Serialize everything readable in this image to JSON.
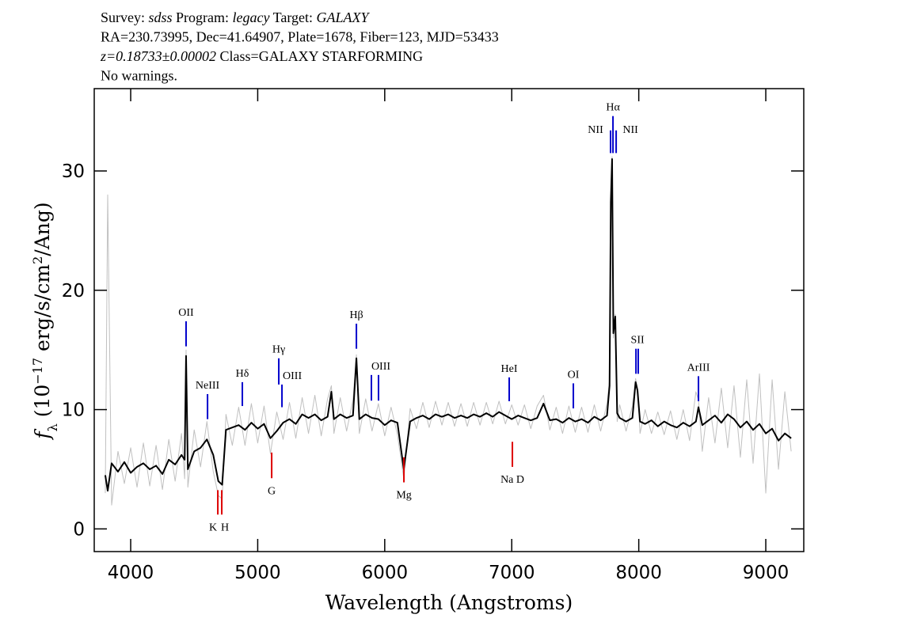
{
  "chart_data": {
    "type": "line",
    "header": [
      [
        {
          "text": "Survey: "
        },
        {
          "text": "sdss",
          "italic": true
        },
        {
          "text": " Program: "
        },
        {
          "text": "legacy",
          "italic": true
        },
        {
          "text": " Target: "
        },
        {
          "text": "GALAXY",
          "italic": true
        }
      ],
      [
        {
          "text": "RA=230.73995, Dec=41.64907, Plate=1678, Fiber=123, MJD=53433"
        }
      ],
      [
        {
          "text": "z=0.18733±0.00002",
          "italic": true
        },
        {
          "text": " Class=GALAXY STARFORMING"
        }
      ],
      [
        {
          "text": "No warnings."
        }
      ]
    ],
    "x_label": "Wavelength (Angstroms)",
    "y_label": [
      {
        "text": "f",
        "italic": true
      },
      {
        "text": "λ",
        "sub": true
      },
      {
        "text": " (10"
      },
      {
        "text": "−17",
        "sup": true
      },
      {
        "text": " erg/s/cm"
      },
      {
        "text": "2",
        "sup": true
      },
      {
        "text": "/Ang)"
      }
    ],
    "xlim": [
      3713,
      9299
    ],
    "ylim": [
      -1.9,
      36.9
    ],
    "xticks": [
      4000,
      5000,
      6000,
      7000,
      8000,
      9000
    ],
    "yticks": [
      0,
      10,
      20,
      30
    ],
    "x": [
      3800,
      3819,
      3850,
      3900,
      3950,
      4000,
      4050,
      4100,
      4150,
      4200,
      4250,
      4300,
      4350,
      4400,
      4425,
      4436,
      4450,
      4500,
      4550,
      4600,
      4650,
      4690,
      4720,
      4750,
      4800,
      4850,
      4900,
      4950,
      5000,
      5050,
      5100,
      5150,
      5200,
      5250,
      5300,
      5350,
      5400,
      5450,
      5500,
      5550,
      5580,
      5600,
      5650,
      5700,
      5750,
      5777,
      5800,
      5850,
      5900,
      5950,
      6000,
      6050,
      6100,
      6150,
      6200,
      6250,
      6300,
      6350,
      6400,
      6450,
      6500,
      6550,
      6600,
      6650,
      6700,
      6750,
      6800,
      6850,
      6900,
      6950,
      7000,
      7050,
      7100,
      7150,
      7200,
      7250,
      7300,
      7350,
      7400,
      7450,
      7500,
      7550,
      7600,
      7650,
      7700,
      7750,
      7770,
      7780,
      7790,
      7800,
      7815,
      7830,
      7850,
      7900,
      7950,
      7975,
      7990,
      8010,
      8050,
      8100,
      8150,
      8200,
      8250,
      8300,
      8350,
      8400,
      8450,
      8470,
      8500,
      8550,
      8600,
      8650,
      8700,
      8750,
      8800,
      8850,
      8900,
      8950,
      9000,
      9050,
      9100,
      9150,
      9200
    ],
    "series": [
      {
        "color": "#c0c0c0",
        "width": 1,
        "values": [
          3.0,
          28.0,
          2.0,
          6.5,
          3.8,
          6.8,
          3.5,
          7.2,
          3.6,
          7.0,
          3.3,
          7.5,
          4.0,
          8.0,
          4.2,
          15.0,
          3.5,
          8.3,
          5.2,
          9.0,
          4.8,
          2.8,
          2.5,
          9.6,
          7.0,
          10.2,
          7.0,
          10.5,
          7.2,
          10.3,
          6.3,
          9.8,
          7.5,
          10.6,
          7.6,
          11.0,
          8.0,
          11.2,
          7.8,
          10.9,
          12.0,
          8.0,
          11.0,
          8.2,
          10.8,
          14.6,
          8.0,
          10.9,
          8.2,
          10.5,
          7.8,
          10.2,
          7.9,
          4.2,
          10.1,
          8.4,
          10.6,
          8.5,
          10.7,
          8.7,
          10.6,
          8.6,
          10.5,
          8.6,
          10.6,
          8.7,
          10.6,
          8.8,
          10.7,
          8.8,
          10.4,
          8.7,
          10.4,
          8.4,
          10.3,
          11.2,
          8.3,
          10.2,
          8.0,
          10.3,
          8.1,
          10.2,
          8.1,
          10.4,
          8.2,
          10.5,
          12.5,
          27.0,
          31.2,
          16.0,
          18.0,
          9.0,
          10.4,
          8.2,
          10.3,
          12.6,
          11.8,
          8.0,
          10.0,
          8.0,
          9.8,
          7.9,
          9.9,
          7.5,
          10.0,
          7.4,
          11.5,
          10.8,
          6.5,
          11.0,
          7.2,
          11.8,
          6.8,
          12.0,
          6.0,
          12.5,
          5.5,
          13.0,
          3.0,
          12.5,
          5.0,
          11.5,
          6.5
        ]
      },
      {
        "color": "#000000",
        "width": 2,
        "values": [
          4.5,
          3.2,
          5.5,
          4.8,
          5.6,
          4.7,
          5.2,
          5.5,
          5.0,
          5.3,
          4.6,
          5.8,
          5.4,
          6.2,
          5.8,
          14.5,
          5.0,
          6.5,
          6.8,
          7.5,
          6.2,
          4.0,
          3.7,
          8.3,
          8.5,
          8.7,
          8.3,
          8.9,
          8.4,
          8.8,
          7.6,
          8.2,
          8.9,
          9.2,
          8.8,
          9.6,
          9.3,
          9.6,
          9.1,
          9.4,
          11.5,
          9.2,
          9.6,
          9.3,
          9.5,
          14.3,
          9.2,
          9.6,
          9.3,
          9.2,
          8.7,
          9.1,
          8.9,
          5.0,
          9.0,
          9.3,
          9.5,
          9.2,
          9.6,
          9.4,
          9.6,
          9.3,
          9.5,
          9.3,
          9.6,
          9.4,
          9.7,
          9.4,
          9.8,
          9.5,
          9.2,
          9.5,
          9.3,
          9.1,
          9.3,
          10.5,
          9.1,
          9.2,
          8.9,
          9.3,
          9.0,
          9.2,
          8.9,
          9.4,
          9.1,
          9.5,
          12.0,
          27.4,
          31.0,
          16.4,
          17.8,
          9.7,
          9.3,
          9.0,
          9.3,
          12.3,
          11.6,
          9.0,
          8.8,
          9.1,
          8.6,
          9.0,
          8.7,
          8.5,
          8.9,
          8.6,
          9.0,
          10.2,
          8.7,
          9.1,
          9.5,
          8.9,
          9.6,
          9.2,
          8.5,
          9.0,
          8.3,
          8.8,
          8.0,
          8.4,
          7.4,
          8.0,
          7.6
        ]
      }
    ],
    "lines": [
      {
        "label": "OII",
        "x": 4436,
        "y0": 15.3,
        "y1": 17.4,
        "color": "#0000cc"
      },
      {
        "label": "NeIII",
        "x": 4605,
        "y0": 9.2,
        "y1": 11.3,
        "color": "#0000cc"
      },
      {
        "label": "Hδ",
        "x": 4879,
        "y0": 10.3,
        "y1": 12.3,
        "color": "#0000cc"
      },
      {
        "label": "Hγ",
        "x": 5166,
        "y0": 12.1,
        "y1": 14.3,
        "color": "#0000cc"
      },
      {
        "label": "OIII",
        "x": 5191,
        "y0": 10.2,
        "y1": 12.1,
        "color": "#0000cc"
      },
      {
        "label": "Hβ",
        "x": 5777,
        "y0": 15.1,
        "y1": 17.2,
        "color": "#0000cc"
      },
      {
        "label": "OIII",
        "x": 5895,
        "y0": 10.75,
        "y1": 12.9,
        "color": "#0000cc"
      },
      {
        "label": null,
        "x": 5951,
        "y0": 10.75,
        "y1": 12.9,
        "color": "#0000cc"
      },
      {
        "label": "HeI",
        "x": 6980,
        "y0": 10.7,
        "y1": 12.7,
        "color": "#0000cc"
      },
      {
        "label": "OI",
        "x": 7485,
        "y0": 10.1,
        "y1": 12.2,
        "color": "#0000cc"
      },
      {
        "label": "NII",
        "x": 7778,
        "y0": 31.5,
        "y1": 33.4,
        "color": "#0000cc"
      },
      {
        "label": "Hα",
        "x": 7797,
        "y0": 31.5,
        "y1": 34.6,
        "color": "#0000cc"
      },
      {
        "label": "NII",
        "x": 7822,
        "y0": 31.5,
        "y1": 33.4,
        "color": "#0000cc"
      },
      {
        "label": "SII",
        "x": 7978,
        "y0": 13.0,
        "y1": 15.1,
        "color": "#0000cc"
      },
      {
        "label": null,
        "x": 7996,
        "y0": 13.0,
        "y1": 15.1,
        "color": "#0000cc"
      },
      {
        "label": "ArIII",
        "x": 8470,
        "y0": 10.7,
        "y1": 12.8,
        "color": "#0000cc"
      },
      {
        "label": "K",
        "x": 4686,
        "y0": 1.2,
        "y1": 3.25,
        "color": "#dd0000"
      },
      {
        "label": "H",
        "x": 4717,
        "y0": 1.2,
        "y1": 3.25,
        "color": "#dd0000"
      },
      {
        "label": "G",
        "x": 5110,
        "y0": 4.25,
        "y1": 6.4,
        "color": "#dd0000"
      },
      {
        "label": "Mg",
        "x": 6151,
        "y0": 3.9,
        "y1": 6.0,
        "color": "#dd0000"
      },
      {
        "label": "Na D",
        "x": 7005,
        "y0": 5.2,
        "y1": 7.3,
        "color": "#dd0000"
      }
    ]
  }
}
